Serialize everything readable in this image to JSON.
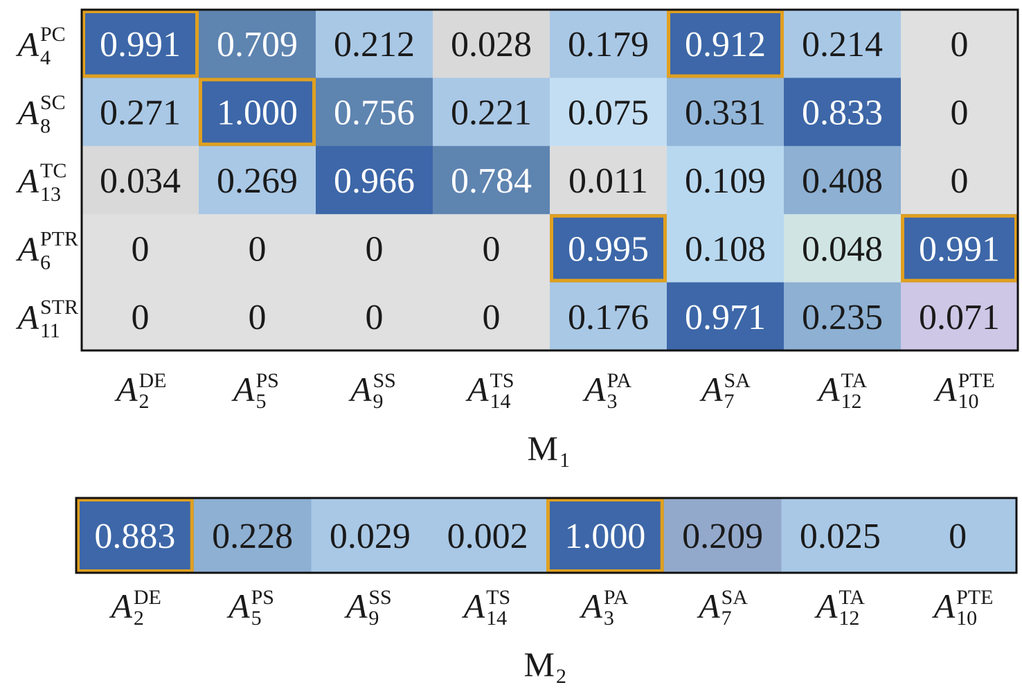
{
  "chart_data": [
    {
      "type": "heatmap",
      "title": "M1",
      "title_base": "M",
      "title_sub": "1",
      "row_labels": [
        {
          "base": "A",
          "sub": "4",
          "sup": "PC"
        },
        {
          "base": "A",
          "sub": "8",
          "sup": "SC"
        },
        {
          "base": "A",
          "sub": "13",
          "sup": "TC"
        },
        {
          "base": "A",
          "sub": "6",
          "sup": "PTR"
        },
        {
          "base": "A",
          "sub": "11",
          "sup": "STR"
        }
      ],
      "col_labels": [
        {
          "base": "A",
          "sub": "2",
          "sup": "DE"
        },
        {
          "base": "A",
          "sub": "5",
          "sup": "PS"
        },
        {
          "base": "A",
          "sub": "9",
          "sup": "SS"
        },
        {
          "base": "A",
          "sub": "14",
          "sup": "TS"
        },
        {
          "base": "A",
          "sub": "3",
          "sup": "PA"
        },
        {
          "base": "A",
          "sub": "7",
          "sup": "SA"
        },
        {
          "base": "A",
          "sub": "12",
          "sup": "TA"
        },
        {
          "base": "A",
          "sub": "10",
          "sup": "PTE"
        }
      ],
      "cells": [
        [
          "0.991",
          "0.709",
          "0.212",
          "0.028",
          "0.179",
          "0.912",
          "0.214",
          "0"
        ],
        [
          "0.271",
          "1.000",
          "0.756",
          "0.221",
          "0.075",
          "0.331",
          "0.833",
          "0"
        ],
        [
          "0.034",
          "0.269",
          "0.966",
          "0.784",
          "0.011",
          "0.109",
          "0.408",
          "0"
        ],
        [
          "0",
          "0",
          "0",
          "0",
          "0.995",
          "0.108",
          "0.048",
          "0.991"
        ],
        [
          "0",
          "0",
          "0",
          "0",
          "0.176",
          "0.971",
          "0.235",
          "0.071"
        ]
      ],
      "cell_colors": [
        [
          "#3d67a8",
          "#5e84b0",
          "#a9c8e6",
          "#d9d9d9",
          "#a9c8e6",
          "#3d67a8",
          "#a9c8e6",
          "#e0e0e0"
        ],
        [
          "#a9c8e6",
          "#3d67a8",
          "#5e84b0",
          "#a9c8e6",
          "#c3def3",
          "#93b7da",
          "#3d67a8",
          "#e0e0e0"
        ],
        [
          "#d9d9d9",
          "#a9c8e6",
          "#3d67a8",
          "#5e84b0",
          "#dcdcdc",
          "#b8d8f0",
          "#8db0d3",
          "#e0e0e0"
        ],
        [
          "#e0e0e0",
          "#e0e0e0",
          "#e0e0e0",
          "#e0e0e0",
          "#3d67a8",
          "#b8d8f0",
          "#d0e5e3",
          "#3d67a8"
        ],
        [
          "#e0e0e0",
          "#e0e0e0",
          "#e0e0e0",
          "#e0e0e0",
          "#a9c8e6",
          "#3d67a8",
          "#8db0d3",
          "#cec7e6"
        ]
      ],
      "text_colors": [
        [
          "light",
          "light",
          "dark",
          "dark",
          "dark",
          "light",
          "dark",
          "dark"
        ],
        [
          "dark",
          "light",
          "light",
          "dark",
          "dark",
          "dark",
          "light",
          "dark"
        ],
        [
          "dark",
          "dark",
          "light",
          "light",
          "dark",
          "dark",
          "dark",
          "dark"
        ],
        [
          "dark",
          "dark",
          "dark",
          "dark",
          "light",
          "dark",
          "dark",
          "light"
        ],
        [
          "dark",
          "dark",
          "dark",
          "dark",
          "dark",
          "light",
          "dark",
          "dark"
        ]
      ],
      "highlighted_cells": [
        [
          0,
          0
        ],
        [
          0,
          5
        ],
        [
          1,
          1
        ],
        [
          3,
          4
        ],
        [
          3,
          7
        ]
      ]
    },
    {
      "type": "heatmap",
      "title": "M2",
      "title_base": "M",
      "title_sub": "2",
      "row_labels": [],
      "col_labels": [
        {
          "base": "A",
          "sub": "2",
          "sup": "DE"
        },
        {
          "base": "A",
          "sub": "5",
          "sup": "PS"
        },
        {
          "base": "A",
          "sub": "9",
          "sup": "SS"
        },
        {
          "base": "A",
          "sub": "14",
          "sup": "TS"
        },
        {
          "base": "A",
          "sub": "3",
          "sup": "PA"
        },
        {
          "base": "A",
          "sub": "7",
          "sup": "SA"
        },
        {
          "base": "A",
          "sub": "12",
          "sup": "TA"
        },
        {
          "base": "A",
          "sub": "10",
          "sup": "PTE"
        }
      ],
      "cells": [
        [
          "0.883",
          "0.228",
          "0.029",
          "0.002",
          "1.000",
          "0.209",
          "0.025",
          "0"
        ]
      ],
      "cell_colors": [
        [
          "#3d67a8",
          "#8db0d3",
          "#a9c8e6",
          "#a9c8e6",
          "#3d67a8",
          "#93a9cc",
          "#a9c8e6",
          "#a9c8e6"
        ]
      ],
      "text_colors": [
        [
          "light",
          "dark",
          "dark",
          "dark",
          "light",
          "dark",
          "dark",
          "dark"
        ]
      ],
      "highlighted_cells": [
        [
          0,
          0
        ],
        [
          0,
          4
        ]
      ]
    }
  ],
  "colors": {
    "highlight_border": "#e0a020",
    "frame": "#111111",
    "text_dark": "#1a1a1a",
    "text_light": "#ffffff"
  }
}
